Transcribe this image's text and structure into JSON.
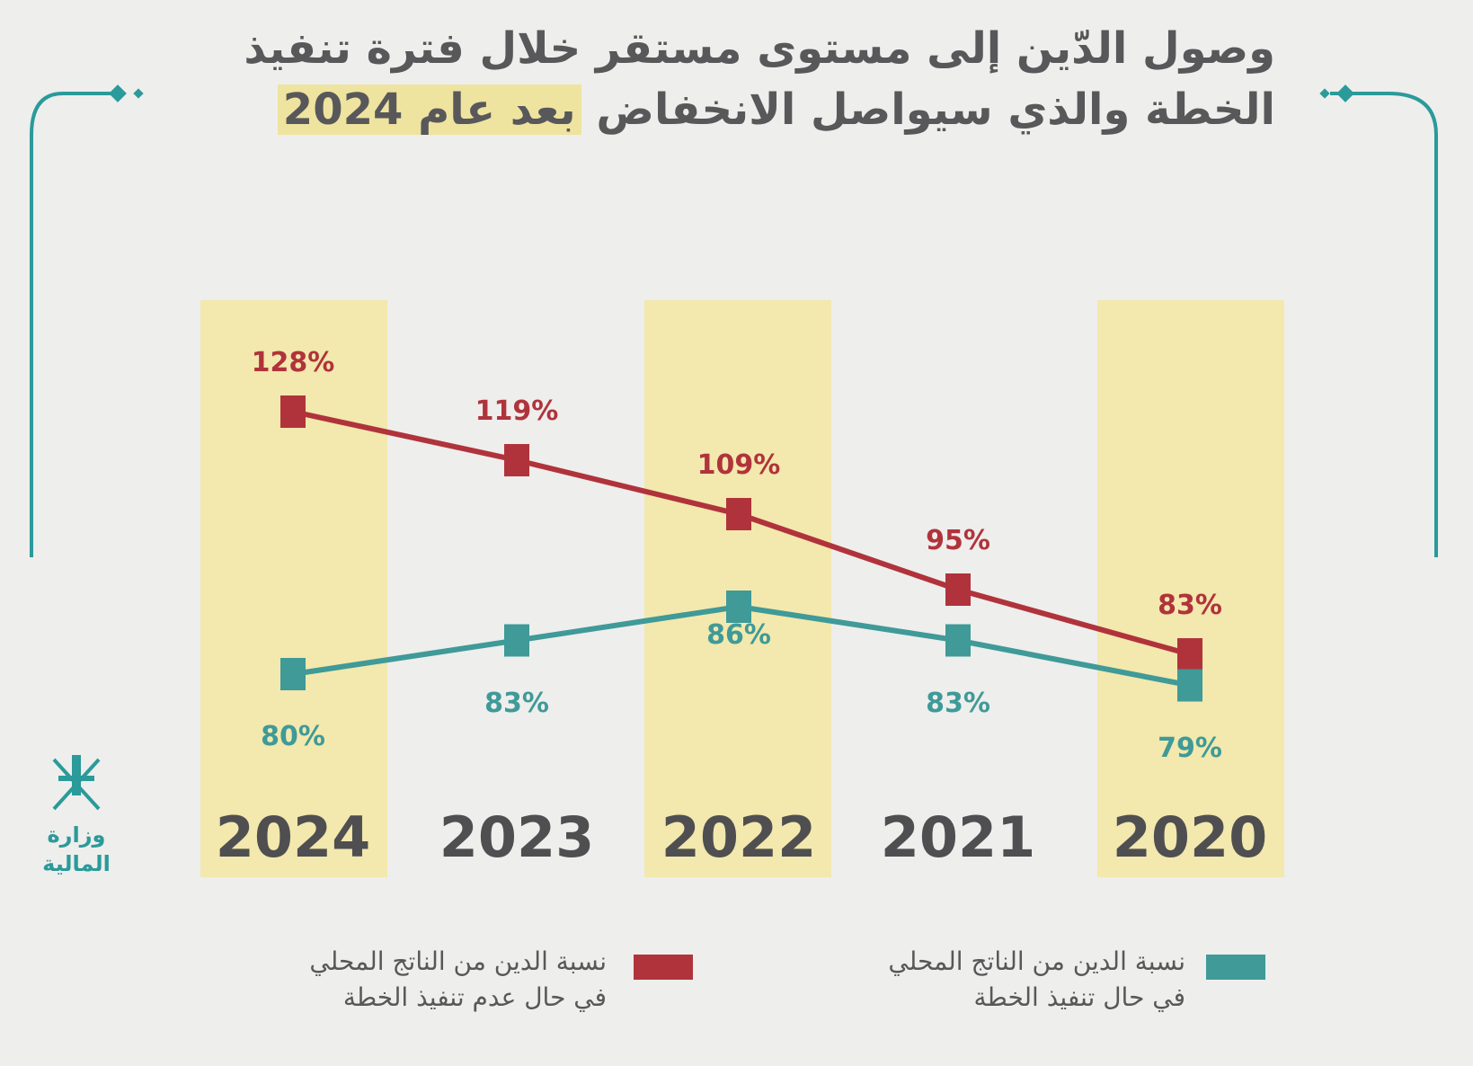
{
  "title": {
    "line1": "وصول الدّين إلى مستوى مستقر خلال فترة تنفيذ",
    "line2_pre": "الخطة والذي سيواصل الانخفاض ",
    "line2_highlight": "بعد عام 2024"
  },
  "logo": {
    "line1": "وزارة",
    "line2": "المالية"
  },
  "colors": {
    "red": "#b0333c",
    "teal": "#3f9a98",
    "band": "#f3e7a6",
    "text": "#58585a"
  },
  "chart_data": {
    "type": "line",
    "title": "وصول الدّين إلى مستوى مستقر خلال فترة تنفيذ الخطة والذي سيواصل الانخفاض بعد عام 2024",
    "categories": [
      "2024",
      "2023",
      "2022",
      "2021",
      "2020"
    ],
    "unit": "%",
    "series": [
      {
        "name": "نسبة الدين من الناتج المحلي في حال عدم تنفيذ الخطة",
        "color": "#b0333c",
        "values": [
          128,
          119,
          109,
          95,
          83
        ],
        "labels": [
          "128%",
          "119%",
          "109%",
          "95%",
          "83%"
        ]
      },
      {
        "name": "نسبة الدين من الناتج المحلي في حال تنفيذ الخطة",
        "color": "#3f9a98",
        "values": [
          80,
          83,
          86,
          83,
          79
        ],
        "labels": [
          "80%",
          "83%",
          "86%",
          "83%",
          "79%"
        ]
      }
    ],
    "highlighted_categories": [
      "2024",
      "2022",
      "2020"
    ],
    "legend_position": "bottom",
    "grid": false
  },
  "legend": [
    {
      "line1": "نسبة الدين من الناتج المحلي",
      "line2": "في حال عدم تنفيذ الخطة"
    },
    {
      "line1": "نسبة الدين من الناتج المحلي",
      "line2": "في حال تنفيذ الخطة"
    }
  ]
}
